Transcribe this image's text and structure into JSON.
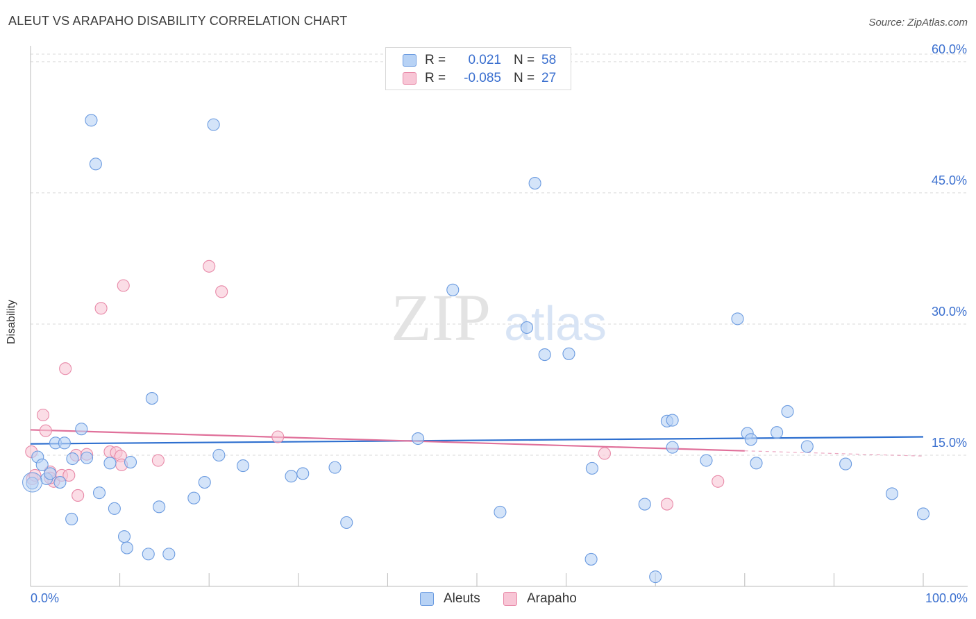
{
  "header": {
    "title": "ALEUT VS ARAPAHO DISABILITY CORRELATION CHART",
    "source": "Source: ZipAtlas.com"
  },
  "watermark": {
    "zip": "ZIP",
    "atlas": "atlas"
  },
  "colors": {
    "aleuts_fill": "#b7d2f5",
    "aleuts_stroke": "#6b9be0",
    "aleuts_line": "#2e6fcf",
    "arapaho_fill": "#f8c6d6",
    "arapaho_stroke": "#e889a8",
    "arapaho_line": "#e0709a",
    "tick_label": "#3a6fcf",
    "grid": "#d9d9d9"
  },
  "legend": {
    "rows": [
      {
        "r_label": "R =",
        "r_value": "0.021",
        "n_label": "N =",
        "n_value": "58"
      },
      {
        "r_label": "R =",
        "r_value": "-0.085",
        "n_label": "N =",
        "n_value": "27"
      }
    ]
  },
  "bottom_legend": {
    "aleuts": "Aleuts",
    "arapaho": "Arapaho"
  },
  "chart_data": {
    "type": "scatter",
    "title": "ALEUT VS ARAPAHO DISABILITY CORRELATION CHART",
    "xlabel": "",
    "ylabel": "Disability",
    "xlim": [
      0,
      100
    ],
    "ylim": [
      0,
      61.5
    ],
    "x_tick_labels": [
      "0.0%",
      "100.0%"
    ],
    "y_ticks": [
      15,
      30,
      45,
      60
    ],
    "y_tick_labels": [
      "15.0%",
      "30.0%",
      "45.0%",
      "60.0%"
    ],
    "grid": true,
    "series": [
      {
        "name": "Aleuts",
        "r": 0.021,
        "n": 58,
        "trend": {
          "x": [
            0,
            100
          ],
          "y": [
            16.3,
            17.1
          ]
        },
        "points": [
          {
            "x": 0.2,
            "y": 11.8
          },
          {
            "x": 0.8,
            "y": 14.8
          },
          {
            "x": 1.3,
            "y": 13.9
          },
          {
            "x": 1.8,
            "y": 12.3
          },
          {
            "x": 2.2,
            "y": 12.9
          },
          {
            "x": 2.8,
            "y": 16.4
          },
          {
            "x": 3.3,
            "y": 11.9
          },
          {
            "x": 3.8,
            "y": 16.4
          },
          {
            "x": 4.6,
            "y": 7.7
          },
          {
            "x": 4.7,
            "y": 14.6
          },
          {
            "x": 5.7,
            "y": 18.0
          },
          {
            "x": 6.3,
            "y": 14.7
          },
          {
            "x": 6.8,
            "y": 53.3
          },
          {
            "x": 7.3,
            "y": 48.3
          },
          {
            "x": 7.7,
            "y": 10.7
          },
          {
            "x": 8.9,
            "y": 14.1
          },
          {
            "x": 9.4,
            "y": 8.9
          },
          {
            "x": 10.5,
            "y": 5.7
          },
          {
            "x": 10.8,
            "y": 4.4
          },
          {
            "x": 11.2,
            "y": 14.2
          },
          {
            "x": 13.2,
            "y": 3.7
          },
          {
            "x": 13.6,
            "y": 21.5
          },
          {
            "x": 14.4,
            "y": 9.1
          },
          {
            "x": 15.5,
            "y": 3.7
          },
          {
            "x": 18.3,
            "y": 10.1
          },
          {
            "x": 19.5,
            "y": 11.9
          },
          {
            "x": 20.5,
            "y": 52.8
          },
          {
            "x": 21.1,
            "y": 15.0
          },
          {
            "x": 23.8,
            "y": 13.8
          },
          {
            "x": 29.2,
            "y": 12.6
          },
          {
            "x": 30.5,
            "y": 12.9
          },
          {
            "x": 34.1,
            "y": 13.6
          },
          {
            "x": 35.4,
            "y": 7.3
          },
          {
            "x": 43.4,
            "y": 16.9
          },
          {
            "x": 47.3,
            "y": 33.9
          },
          {
            "x": 52.6,
            "y": 8.5
          },
          {
            "x": 55.6,
            "y": 29.6
          },
          {
            "x": 56.5,
            "y": 46.1
          },
          {
            "x": 57.6,
            "y": 26.5
          },
          {
            "x": 60.3,
            "y": 26.6
          },
          {
            "x": 62.8,
            "y": 3.1
          },
          {
            "x": 62.9,
            "y": 13.5
          },
          {
            "x": 68.8,
            "y": 9.4
          },
          {
            "x": 70.0,
            "y": 1.1
          },
          {
            "x": 71.3,
            "y": 18.9
          },
          {
            "x": 71.9,
            "y": 19.0
          },
          {
            "x": 71.9,
            "y": 15.9
          },
          {
            "x": 75.7,
            "y": 14.4
          },
          {
            "x": 79.2,
            "y": 30.6
          },
          {
            "x": 80.3,
            "y": 17.5
          },
          {
            "x": 80.7,
            "y": 16.8
          },
          {
            "x": 81.3,
            "y": 14.1
          },
          {
            "x": 83.6,
            "y": 17.6
          },
          {
            "x": 84.8,
            "y": 20.0
          },
          {
            "x": 87.0,
            "y": 16.0
          },
          {
            "x": 91.3,
            "y": 14.0
          },
          {
            "x": 96.5,
            "y": 10.6
          },
          {
            "x": 100.0,
            "y": 8.3
          }
        ]
      },
      {
        "name": "Arapaho",
        "r": -0.085,
        "n": 27,
        "trend": {
          "x": [
            0,
            80
          ],
          "y": [
            17.9,
            15.5
          ]
        },
        "trend_dashed": {
          "x": [
            80,
            100
          ],
          "y": [
            15.5,
            14.9
          ]
        },
        "points": [
          {
            "x": 0.1,
            "y": 15.4
          },
          {
            "x": 0.2,
            "y": 12.3
          },
          {
            "x": 1.4,
            "y": 19.6
          },
          {
            "x": 1.7,
            "y": 17.8
          },
          {
            "x": 2.2,
            "y": 13.1
          },
          {
            "x": 2.6,
            "y": 12.0
          },
          {
            "x": 3.5,
            "y": 12.7
          },
          {
            "x": 3.9,
            "y": 24.9
          },
          {
            "x": 4.3,
            "y": 12.7
          },
          {
            "x": 5.1,
            "y": 15.0
          },
          {
            "x": 5.3,
            "y": 10.4
          },
          {
            "x": 6.3,
            "y": 15.1
          },
          {
            "x": 7.9,
            "y": 31.8
          },
          {
            "x": 8.9,
            "y": 15.4
          },
          {
            "x": 9.6,
            "y": 15.3
          },
          {
            "x": 10.1,
            "y": 14.9
          },
          {
            "x": 10.2,
            "y": 13.9
          },
          {
            "x": 10.4,
            "y": 34.4
          },
          {
            "x": 14.3,
            "y": 14.4
          },
          {
            "x": 20.0,
            "y": 36.6
          },
          {
            "x": 21.4,
            "y": 33.7
          },
          {
            "x": 27.7,
            "y": 17.1
          },
          {
            "x": 64.3,
            "y": 15.2
          },
          {
            "x": 71.3,
            "y": 9.4
          },
          {
            "x": 77.0,
            "y": 12.0
          },
          {
            "x": 0.5,
            "y": 12.7
          },
          {
            "x": 2.2,
            "y": 12.4
          }
        ]
      }
    ]
  }
}
